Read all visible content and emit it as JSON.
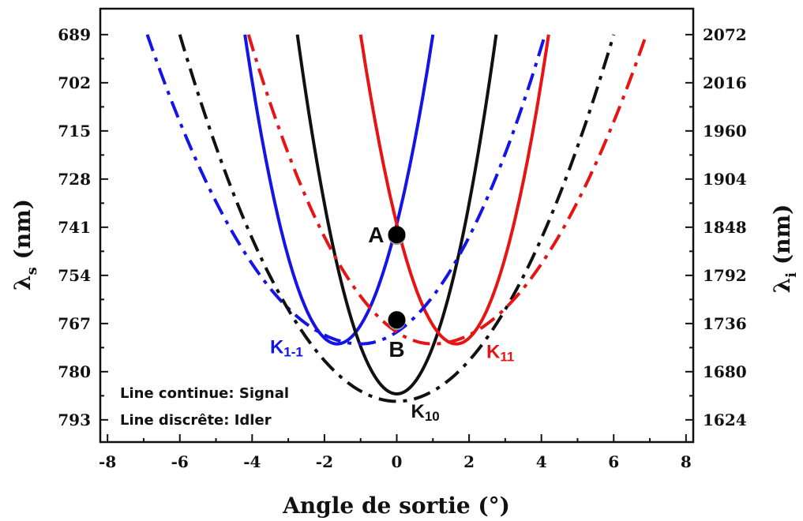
{
  "chart_data": {
    "type": "line",
    "title": "",
    "xlabel": "Angle de sortie (°)",
    "ylabel_left": "λ",
    "ylabel_left_sub": "s",
    "ylabel_left_unit": " (nm)",
    "ylabel_right": "λ",
    "ylabel_right_sub": "i",
    "ylabel_right_unit": " (nm)",
    "xlim": [
      -8.2,
      8.2
    ],
    "ylim_left": [
      799,
      682
    ],
    "x_ticks": [
      -8,
      -6,
      -4,
      -2,
      0,
      2,
      4,
      6,
      8
    ],
    "x_tick_labels": [
      "-8",
      "-6",
      "-4",
      "-2",
      "0",
      "2",
      "4",
      "6",
      "8"
    ],
    "y_left_ticks": [
      689,
      702,
      715,
      728,
      741,
      754,
      767,
      780,
      793
    ],
    "y_left_tick_labels": [
      "689",
      "702",
      "715",
      "728",
      "741",
      "754",
      "767",
      "780",
      "793"
    ],
    "y_right_tick_labels": [
      "2072",
      "2016",
      "1960",
      "1904",
      "1848",
      "1792",
      "1736",
      "1680",
      "1624"
    ],
    "grid": false,
    "legend_lines": [
      "Line continue: Signal",
      "Line discrête: Idler"
    ],
    "series": [
      {
        "name": "K1-1",
        "label_main": "K",
        "label_sub": "1-1",
        "color": "#1414e6",
        "kind": "signal",
        "vertex_x": -1.65,
        "vertex_y": 772.5,
        "x": [
          -4.2,
          -3,
          -1.65,
          0,
          1.0
        ],
        "y": [
          689,
          746.4,
          772.5,
          745.4,
          689
        ]
      },
      {
        "name": "K10",
        "label_main": "K",
        "label_sub": "10",
        "color": "#111111",
        "kind": "signal",
        "vertex_x": 0,
        "vertex_y": 786,
        "x": [
          -2.75,
          -1.5,
          0,
          1.5,
          2.75
        ],
        "y": [
          689,
          757,
          786,
          757,
          689
        ]
      },
      {
        "name": "K11",
        "label_main": "K",
        "label_sub": "11",
        "color": "#e61414",
        "kind": "signal",
        "vertex_x": 1.65,
        "vertex_y": 772.5,
        "x": [
          -1.0,
          0,
          1.65,
          3,
          4.2
        ],
        "y": [
          689,
          745.4,
          772.5,
          746.4,
          689
        ]
      },
      {
        "name": "K1-1 idler",
        "color": "#1414e6",
        "kind": "idler",
        "vertex_x": -1.0,
        "vertex_y": 772.5,
        "x": [
          -6.9,
          -4,
          -1.0,
          2,
          4.1
        ],
        "y": [
          689,
          752,
          772.5,
          753,
          689
        ]
      },
      {
        "name": "K10 idler",
        "color": "#111111",
        "kind": "idler",
        "vertex_x": 0,
        "vertex_y": 788,
        "x": [
          -6.0,
          -3,
          0,
          3,
          6.0
        ],
        "y": [
          689,
          765,
          788,
          765,
          689
        ]
      },
      {
        "name": "K11 idler",
        "color": "#e61414",
        "kind": "idler",
        "vertex_x": 1.0,
        "vertex_y": 772.5,
        "x": [
          -4.1,
          -2,
          1.0,
          4,
          6.9
        ],
        "y": [
          689,
          753,
          772.5,
          752,
          689
        ]
      }
    ],
    "points": [
      {
        "label": "A",
        "x": 0,
        "y": 743
      },
      {
        "label": "B",
        "x": 0,
        "y": 766
      }
    ]
  }
}
